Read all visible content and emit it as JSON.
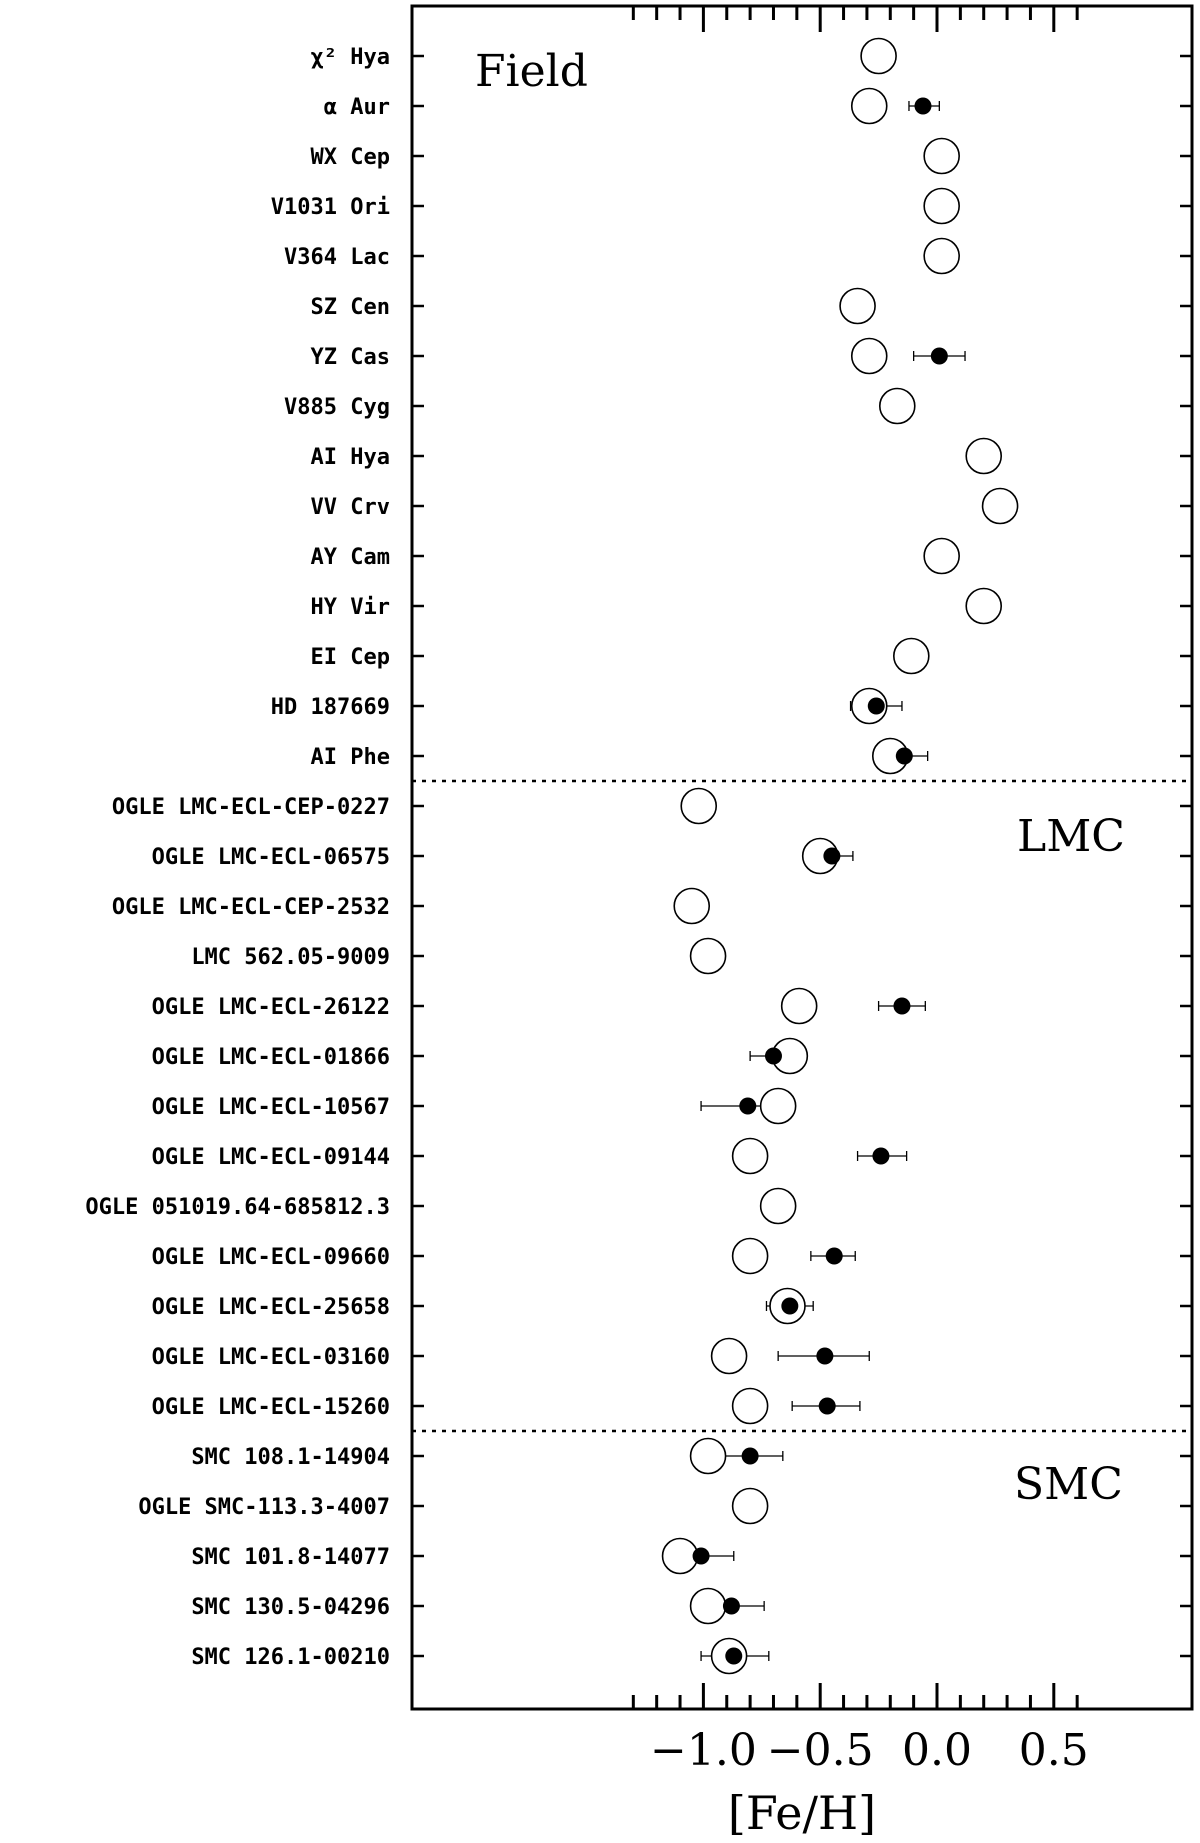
{
  "chart_data": {
    "type": "scatter",
    "title": "",
    "xlabel": "[Fe/H]",
    "ylabel": "",
    "xlim": [
      -1.3,
      0.6
    ],
    "x_ticks": [
      -1.0,
      -0.5,
      0.0,
      0.5
    ],
    "x_tick_labels": [
      "−1.0",
      "−0.5",
      "0.0",
      "0.5"
    ],
    "grid": false,
    "groups": [
      {
        "name": "Field",
        "first": 0,
        "last": 14
      },
      {
        "name": "LMC",
        "first": 15,
        "last": 27
      },
      {
        "name": "SMC",
        "first": 28,
        "last": 32
      }
    ],
    "stars": [
      {
        "label": "χ² Hya",
        "open": -0.25,
        "filled": null
      },
      {
        "label": "α Aur",
        "open": -0.29,
        "filled": -0.06,
        "filled_err": [
          -0.12,
          0.01
        ]
      },
      {
        "label": "WX Cep",
        "open": 0.02,
        "filled": null
      },
      {
        "label": "V1031 Ori",
        "open": 0.02,
        "filled": null
      },
      {
        "label": "V364 Lac",
        "open": 0.02,
        "filled": null
      },
      {
        "label": "SZ Cen",
        "open": -0.34,
        "filled": null
      },
      {
        "label": "YZ Cas",
        "open": -0.29,
        "filled": 0.01,
        "filled_err": [
          -0.1,
          0.12
        ]
      },
      {
        "label": "V885 Cyg",
        "open": -0.17,
        "filled": null
      },
      {
        "label": "AI Hya",
        "open": 0.2,
        "filled": null
      },
      {
        "label": "VV Crv",
        "open": 0.27,
        "filled": null
      },
      {
        "label": "AY Cam",
        "open": 0.02,
        "filled": null
      },
      {
        "label": "HY Vir",
        "open": 0.2,
        "filled": null
      },
      {
        "label": "EI Cep",
        "open": -0.11,
        "filled": null
      },
      {
        "label": "HD 187669",
        "open": -0.29,
        "filled": -0.26,
        "filled_err": [
          -0.37,
          -0.15
        ]
      },
      {
        "label": "AI Phe",
        "open": -0.2,
        "filled": -0.14,
        "filled_err": [
          -0.24,
          -0.04
        ]
      },
      {
        "label": "OGLE LMC-ECL-CEP-0227",
        "open": -1.02,
        "filled": null
      },
      {
        "label": "OGLE LMC-ECL-06575",
        "open": -0.5,
        "filled": -0.45,
        "filled_err": [
          -0.56,
          -0.36
        ]
      },
      {
        "label": "OGLE LMC-ECL-CEP-2532",
        "open": -1.05,
        "filled": null
      },
      {
        "label": "LMC 562.05-9009",
        "open": -0.98,
        "filled": null
      },
      {
        "label": "OGLE LMC-ECL-26122",
        "open": -0.59,
        "filled": -0.15,
        "filled_err": [
          -0.25,
          -0.05
        ]
      },
      {
        "label": "OGLE LMC-ECL-01866",
        "open": -0.63,
        "filled": -0.7,
        "filled_err": [
          -0.8,
          -0.61
        ]
      },
      {
        "label": "OGLE LMC-ECL-10567",
        "open": -0.68,
        "filled": -0.81,
        "filled_err": [
          -1.01,
          -0.62
        ]
      },
      {
        "label": "OGLE LMC-ECL-09144",
        "open": -0.8,
        "filled": -0.24,
        "filled_err": [
          -0.34,
          -0.13
        ]
      },
      {
        "label": "OGLE 051019.64-685812.3",
        "open": -0.68,
        "filled": null
      },
      {
        "label": "OGLE LMC-ECL-09660",
        "open": -0.8,
        "filled": -0.44,
        "filled_err": [
          -0.54,
          -0.35
        ]
      },
      {
        "label": "OGLE LMC-ECL-25658",
        "open": -0.64,
        "filled": -0.63,
        "filled_err": [
          -0.73,
          -0.53
        ]
      },
      {
        "label": "OGLE LMC-ECL-03160",
        "open": -0.89,
        "filled": -0.48,
        "filled_err": [
          -0.68,
          -0.29
        ]
      },
      {
        "label": "OGLE LMC-ECL-15260",
        "open": -0.8,
        "filled": -0.47,
        "filled_err": [
          -0.62,
          -0.33
        ]
      },
      {
        "label": "SMC 108.1-14904",
        "open": -0.98,
        "filled": -0.8,
        "filled_err": [
          -0.95,
          -0.66
        ]
      },
      {
        "label": "OGLE SMC-113.3-4007",
        "open": -0.8,
        "filled": null
      },
      {
        "label": "SMC 101.8-14077",
        "open": -1.1,
        "filled": -1.01,
        "filled_err": [
          -1.16,
          -0.87
        ]
      },
      {
        "label": "SMC 130.5-04296",
        "open": -0.98,
        "filled": -0.88,
        "filled_err": [
          -1.03,
          -0.74
        ]
      },
      {
        "label": "SMC 126.1-00210",
        "open": -0.89,
        "filled": -0.87,
        "filled_err": [
          -1.01,
          -0.72
        ]
      }
    ]
  }
}
